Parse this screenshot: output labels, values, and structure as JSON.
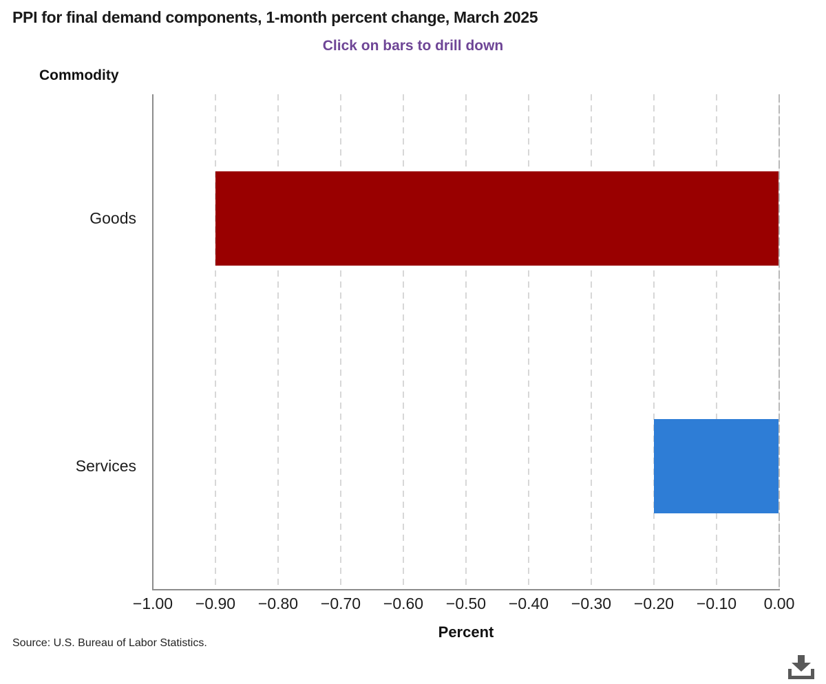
{
  "header": {
    "title": "PPI for final demand components, 1-month percent change, March 2025",
    "subtitle": "Click on bars to drill down"
  },
  "chart_data": {
    "type": "bar",
    "orientation": "horizontal",
    "title": "PPI for final demand components, 1-month percent change, March 2025",
    "subtitle": "Click on bars to drill down",
    "categories": [
      "Goods",
      "Services"
    ],
    "values": [
      -0.9,
      -0.2
    ],
    "bar_colors": [
      "#990000",
      "#2E7DD6"
    ],
    "xlabel": "Percent",
    "ylabel": "Commodity",
    "xlim": [
      -1.0,
      0.0
    ],
    "xticks": [
      -1.0,
      -0.9,
      -0.8,
      -0.7,
      -0.6,
      -0.5,
      -0.4,
      -0.3,
      -0.2,
      -0.1,
      0.0
    ],
    "xtick_labels": [
      "−1.00",
      "−0.90",
      "−0.80",
      "−0.70",
      "−0.60",
      "−0.50",
      "−0.40",
      "−0.30",
      "−0.20",
      "−0.10",
      "0.00"
    ],
    "grid": "vertical-dashed",
    "legend": "none"
  },
  "footer": {
    "source": "Source: U.S. Bureau of Labor Statistics."
  },
  "toolbar": {
    "download_icon": "download-icon"
  },
  "colors": {
    "title_text": "#1a1a1a",
    "subtitle_text": "#6e4596",
    "goods_bar": "#990000",
    "services_bar": "#2E7DD6",
    "axis_line": "#8c8c8c",
    "gridline": "#d7d7d7",
    "zero_line": "#b9b9b9",
    "download_icon": "#595959"
  }
}
